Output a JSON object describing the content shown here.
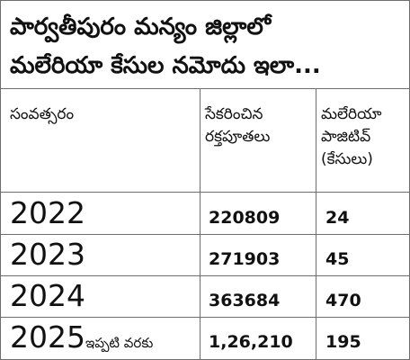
{
  "title": {
    "line1": "పార్వతీపురం మన్యం జిల్లాలో",
    "line2": "మలేరియా కేసుల నమోదు ఇలా..."
  },
  "table": {
    "headers": {
      "year": "సంవత్సరం",
      "samples_line1": "సేకరించిన",
      "samples_line2": "రక్తపూతలు",
      "cases_line1": "మలేరియా",
      "cases_line2": "పాజిటివ్",
      "cases_line3": "(కేసులు)"
    },
    "rows": [
      {
        "year": "2022",
        "suffix": "",
        "samples": "220809",
        "cases": "24"
      },
      {
        "year": "2023",
        "suffix": "",
        "samples": "271903",
        "cases": "45"
      },
      {
        "year": "2024",
        "suffix": "",
        "samples": "363684",
        "cases": "470"
      },
      {
        "year": "2025",
        "suffix": "ఇప్పటి వరకు",
        "samples": "1,26,210",
        "cases": "195"
      }
    ]
  }
}
